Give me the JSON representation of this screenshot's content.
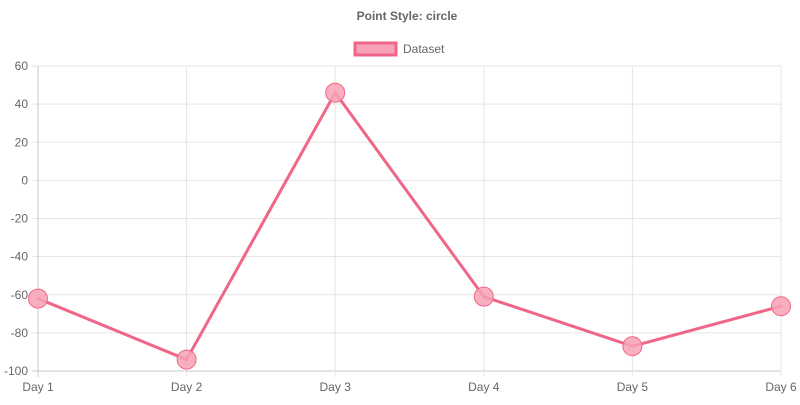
{
  "chart_data": {
    "type": "line",
    "title": "Point Style: circle",
    "categories": [
      "Day 1",
      "Day 2",
      "Day 3",
      "Day 4",
      "Day 5",
      "Day 6"
    ],
    "series": [
      {
        "name": "Dataset",
        "values": [
          -62,
          -94,
          46,
          -61,
          -87,
          -66
        ],
        "border_color": "#f06688",
        "point_fill": "#f7a2b6"
      }
    ],
    "ylim": [
      -100,
      60
    ],
    "yticks": [
      60,
      40,
      20,
      0,
      -20,
      -40,
      -60,
      -80,
      -100
    ],
    "grid": true,
    "legend_position": "top-center",
    "point_style": "circle"
  }
}
